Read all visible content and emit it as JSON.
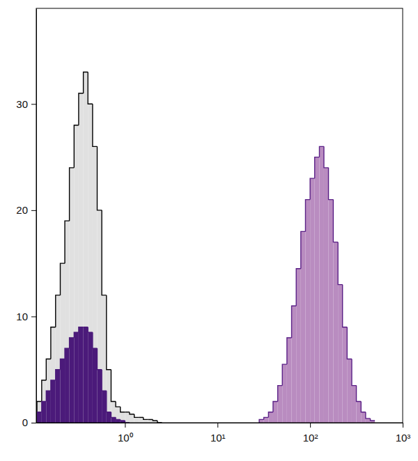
{
  "chart_data": {
    "type": "histogram",
    "log": "x",
    "xlim": [
      0.11,
      1000
    ],
    "ylim": [
      0,
      39
    ],
    "xticks": [
      {
        "value": 1,
        "label": "10⁰"
      },
      {
        "value": 10,
        "label": "10¹"
      },
      {
        "value": 100,
        "label": "10²"
      },
      {
        "value": 1000,
        "label": "10³"
      }
    ],
    "yticks": [
      0,
      10,
      20,
      30
    ],
    "bins": [
      0.112,
      0.126,
      0.141,
      0.158,
      0.178,
      0.2,
      0.224,
      0.251,
      0.282,
      0.316,
      0.355,
      0.398,
      0.447,
      0.501,
      0.562,
      0.631,
      0.708,
      0.794,
      0.891,
      1,
      1.12,
      1.26,
      1.41,
      1.58,
      1.78,
      2,
      2.24,
      2.51,
      2.82,
      3.16,
      3.55,
      3.98,
      4.47,
      5.01,
      5.62,
      6.31,
      7.08,
      7.94,
      8.91,
      10,
      11.2,
      12.6,
      14.1,
      15.8,
      17.8,
      20,
      22.4,
      25.1,
      28.2,
      31.6,
      35.5,
      39.8,
      44.7,
      50.1,
      56.2,
      63.1,
      70.8,
      79.4,
      89.1,
      100,
      112,
      126,
      141,
      158,
      178,
      200,
      224,
      251,
      282,
      316,
      355,
      398,
      447,
      501
    ],
    "series": [
      {
        "color": "#e0e0e0",
        "values": [
          2,
          4,
          6,
          9,
          12,
          15,
          19,
          24,
          28,
          31,
          33,
          30,
          26,
          20,
          12,
          5,
          2,
          1.5,
          1,
          1,
          0.8,
          0.5,
          0.5,
          0.3,
          0.3,
          0.2,
          0,
          0,
          0,
          0,
          0,
          0,
          0,
          0,
          0,
          0,
          0,
          0,
          0,
          0,
          0,
          0,
          0,
          0,
          0,
          0,
          0,
          0,
          0,
          0,
          0,
          0,
          0,
          0,
          0,
          0,
          0,
          0,
          0,
          0,
          0,
          0,
          0,
          0,
          0,
          0,
          0,
          0,
          0,
          0,
          0,
          0,
          0
        ]
      },
      {
        "color": "#4b1a7a",
        "values": [
          1,
          2,
          3,
          4,
          5,
          6,
          7,
          8,
          8.5,
          9,
          9,
          8.5,
          7,
          5,
          3,
          1,
          0.5,
          0.3,
          0.2,
          0,
          0,
          0,
          0,
          0,
          0,
          0,
          0,
          0,
          0,
          0,
          0,
          0,
          0,
          0,
          0,
          0,
          0,
          0,
          0,
          0,
          0,
          0,
          0,
          0,
          0,
          0,
          0,
          0,
          0,
          0,
          0,
          0,
          0,
          0,
          0,
          0,
          0,
          0,
          0,
          0,
          0,
          0,
          0,
          0,
          0,
          0,
          0,
          0,
          0,
          0,
          0,
          0,
          0
        ]
      },
      {
        "color": "#b98cc0",
        "values": [
          0,
          0,
          0,
          0,
          0,
          0,
          0,
          0,
          0,
          0,
          0,
          0,
          0,
          0,
          0,
          0,
          0,
          0,
          0,
          0,
          0,
          0,
          0,
          0,
          0,
          0,
          0,
          0,
          0,
          0,
          0,
          0,
          0,
          0,
          0,
          0,
          0,
          0,
          0,
          0,
          0,
          0,
          0,
          0,
          0,
          0,
          0,
          0,
          0.3,
          0.5,
          1,
          2,
          3.5,
          5.5,
          8,
          11,
          14.5,
          18,
          21,
          23,
          25,
          26,
          24,
          21,
          17,
          13,
          9,
          6,
          3.5,
          2,
          1,
          0.4,
          0.2
        ]
      }
    ]
  }
}
